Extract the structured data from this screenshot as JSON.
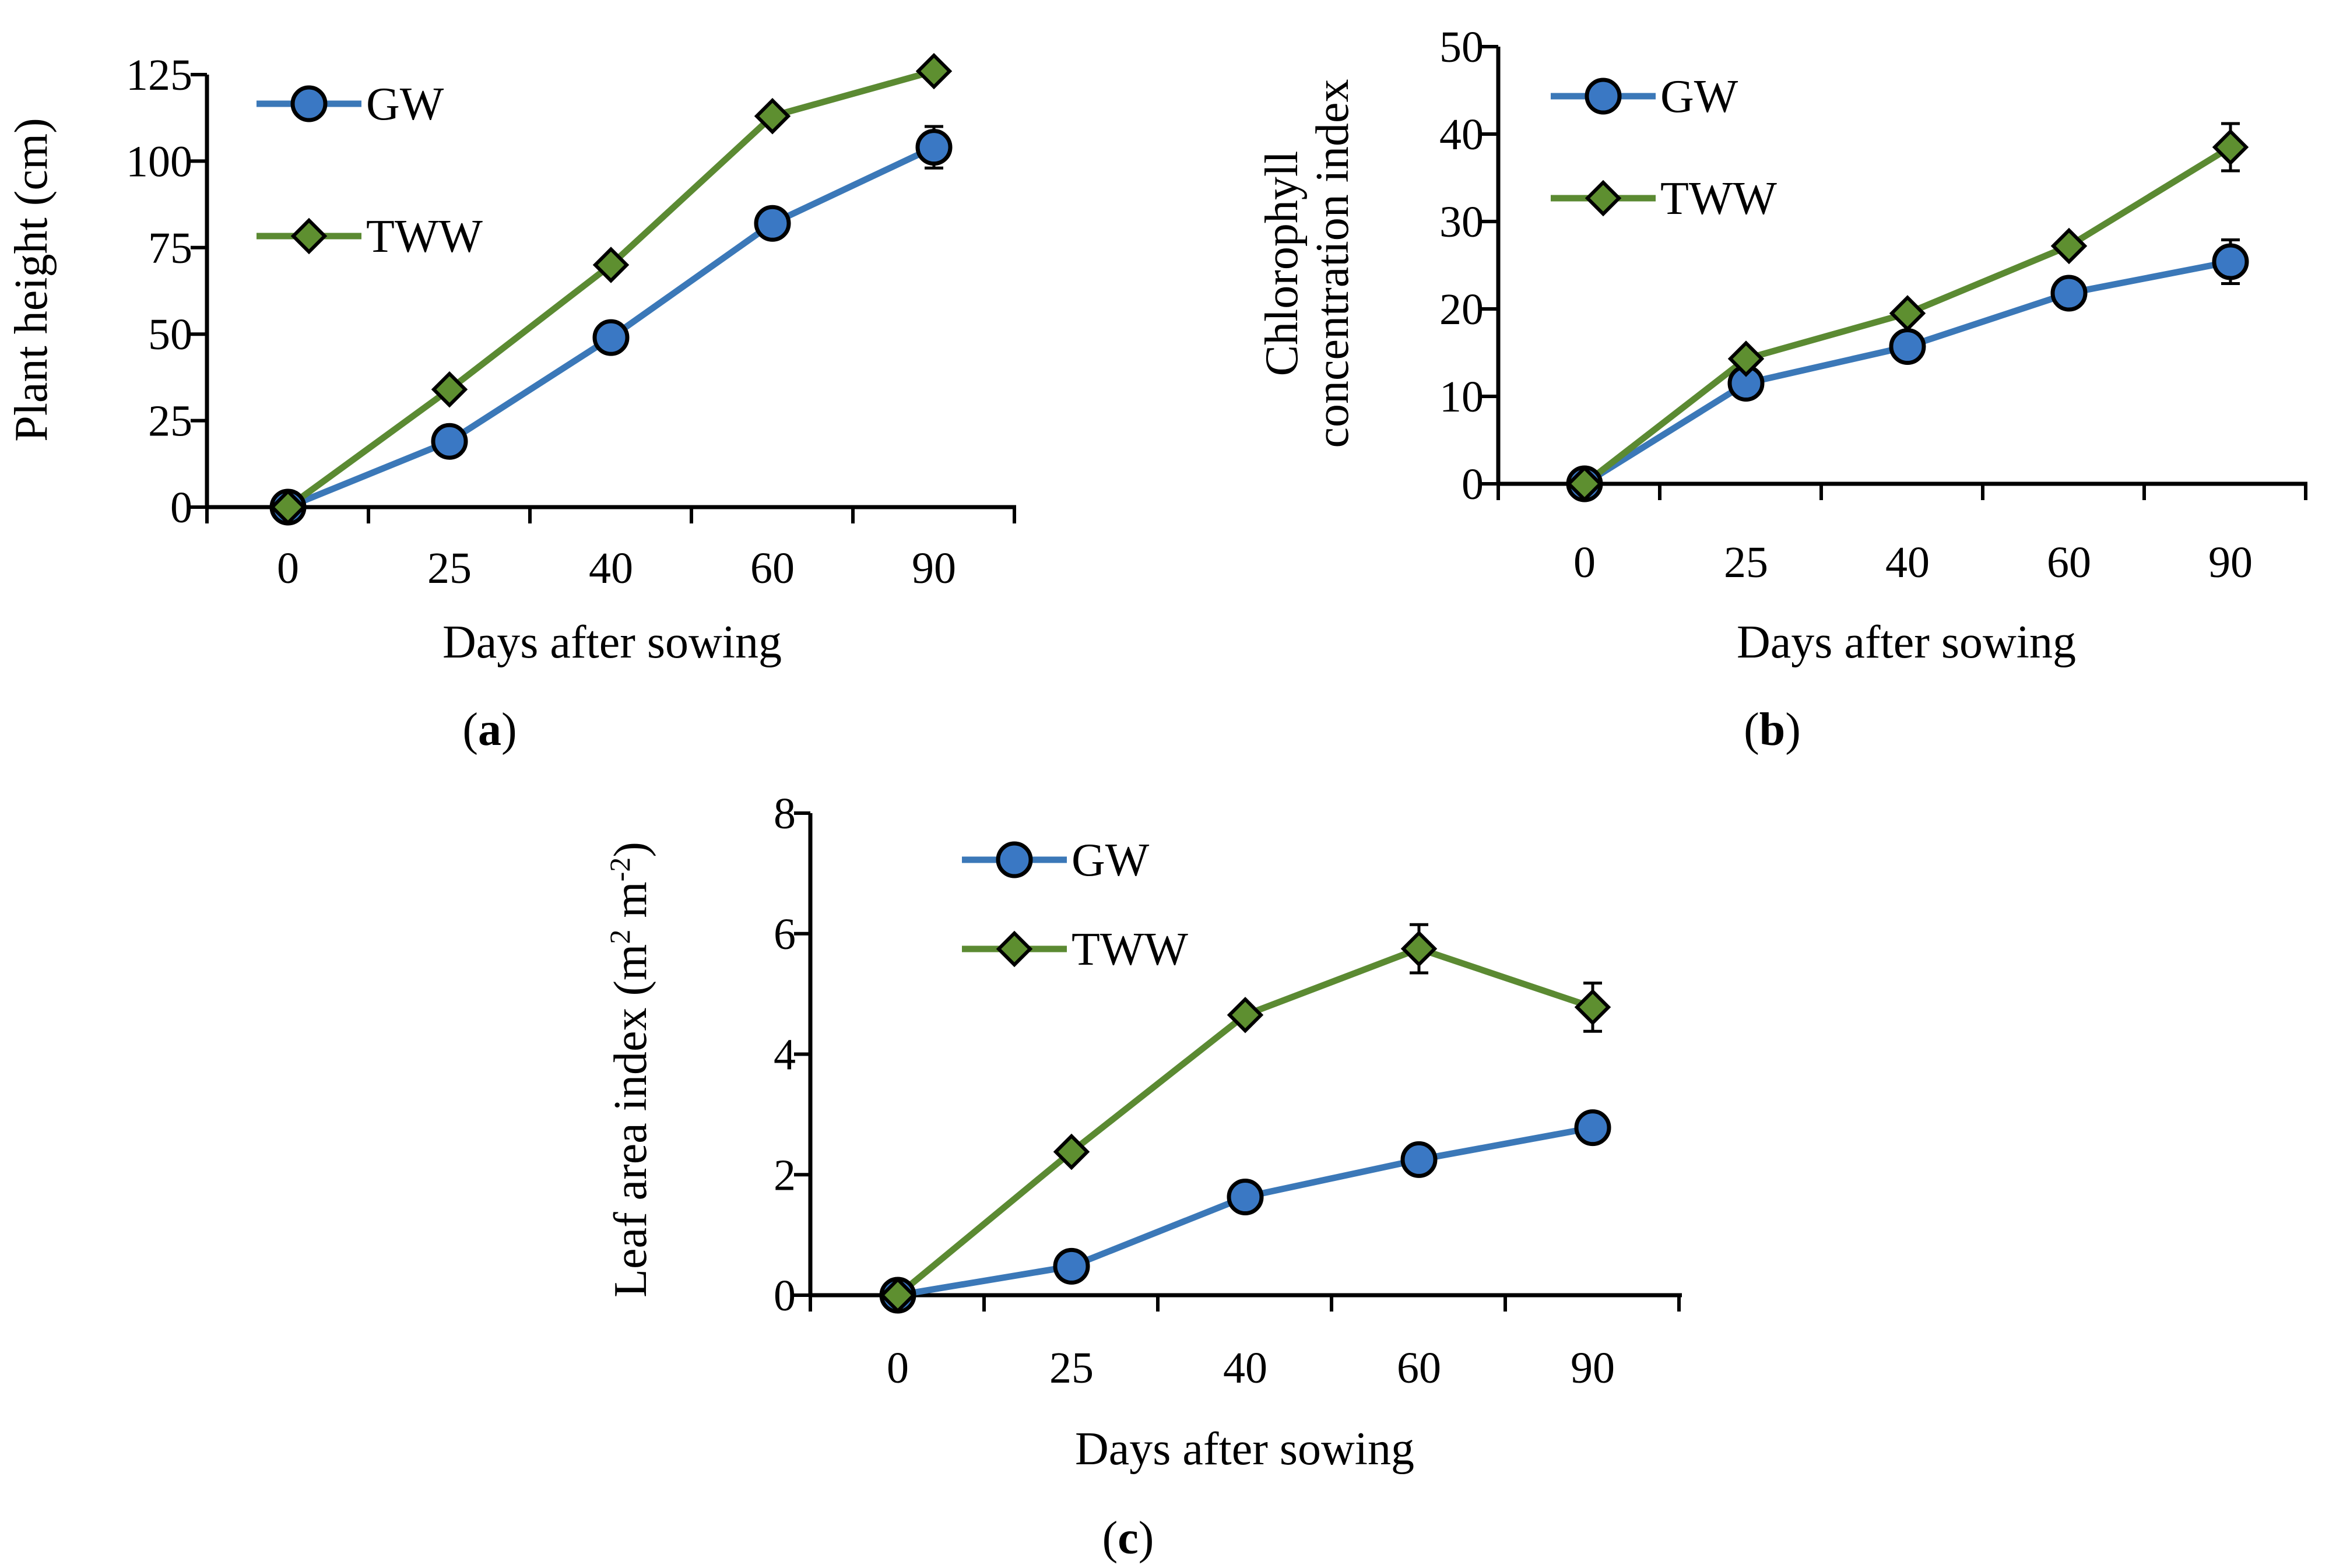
{
  "colors": {
    "gw_line": "#3b78b8",
    "gw_marker": "#3a78c4",
    "tww_line": "#5b8a32",
    "tww_marker": "#5e8f30",
    "marker_edge": "#000000"
  },
  "chart_data": [
    {
      "id": "a",
      "type": "line",
      "caption": {
        "open": "(",
        "label": "a",
        "close": ")"
      },
      "xlabel": "Days after sowing",
      "ylabel": "Plant height (cm)",
      "categories": [
        "0",
        "25",
        "40",
        "60",
        "90"
      ],
      "yticks": [
        "0",
        "25",
        "50",
        "75",
        "100",
        "125"
      ],
      "ylim": [
        0,
        125
      ],
      "legend_position": "top-left",
      "series": [
        {
          "name": "GW",
          "marker": "circle",
          "values": [
            0,
            19,
            49,
            82,
            104
          ],
          "errors": [
            0,
            0,
            0,
            0,
            6
          ]
        },
        {
          "name": "TWW",
          "marker": "diamond",
          "values": [
            0,
            34,
            70,
            113,
            126
          ],
          "errors": [
            0,
            0,
            0,
            0,
            0
          ]
        }
      ]
    },
    {
      "id": "b",
      "type": "line",
      "caption": {
        "open": "(",
        "label": "b",
        "close": ")"
      },
      "xlabel": "Days after sowing",
      "ylabel_lines": [
        "Chlorophyll",
        "concentration index"
      ],
      "categories": [
        "0",
        "25",
        "40",
        "60",
        "90"
      ],
      "yticks": [
        "0",
        "10",
        "20",
        "30",
        "40",
        "50"
      ],
      "ylim": [
        0,
        50
      ],
      "legend_position": "top-left",
      "series": [
        {
          "name": "GW",
          "marker": "circle",
          "values": [
            0,
            11.5,
            15.7,
            21.8,
            25.4
          ],
          "errors": [
            0,
            0,
            0,
            1.5,
            2.5
          ]
        },
        {
          "name": "TWW",
          "marker": "diamond",
          "values": [
            0,
            14.3,
            19.5,
            27.2,
            38.5
          ],
          "errors": [
            0,
            0,
            0,
            0,
            2.7
          ]
        }
      ]
    },
    {
      "id": "c",
      "type": "line",
      "caption": {
        "open": "(",
        "label": "c",
        "close": ")"
      },
      "xlabel": "Days after sowing",
      "ylabel_parts": {
        "main": "Leaf area index (m",
        "sup1": "2",
        "mid": " m",
        "sup2": "-2",
        "end": ")"
      },
      "categories": [
        "0",
        "25",
        "40",
        "60",
        "90"
      ],
      "yticks": [
        "0",
        "2",
        "4",
        "6",
        "8"
      ],
      "ylim": [
        0,
        8
      ],
      "legend_position": "top-left",
      "series": [
        {
          "name": "GW",
          "marker": "circle",
          "values": [
            0,
            0.48,
            1.63,
            2.25,
            2.78
          ],
          "errors": [
            0,
            0,
            0,
            0,
            0
          ]
        },
        {
          "name": "TWW",
          "marker": "diamond",
          "values": [
            0,
            2.38,
            4.65,
            5.75,
            4.78
          ],
          "errors": [
            0,
            0.1,
            0,
            0.4,
            0.4
          ]
        }
      ]
    }
  ]
}
